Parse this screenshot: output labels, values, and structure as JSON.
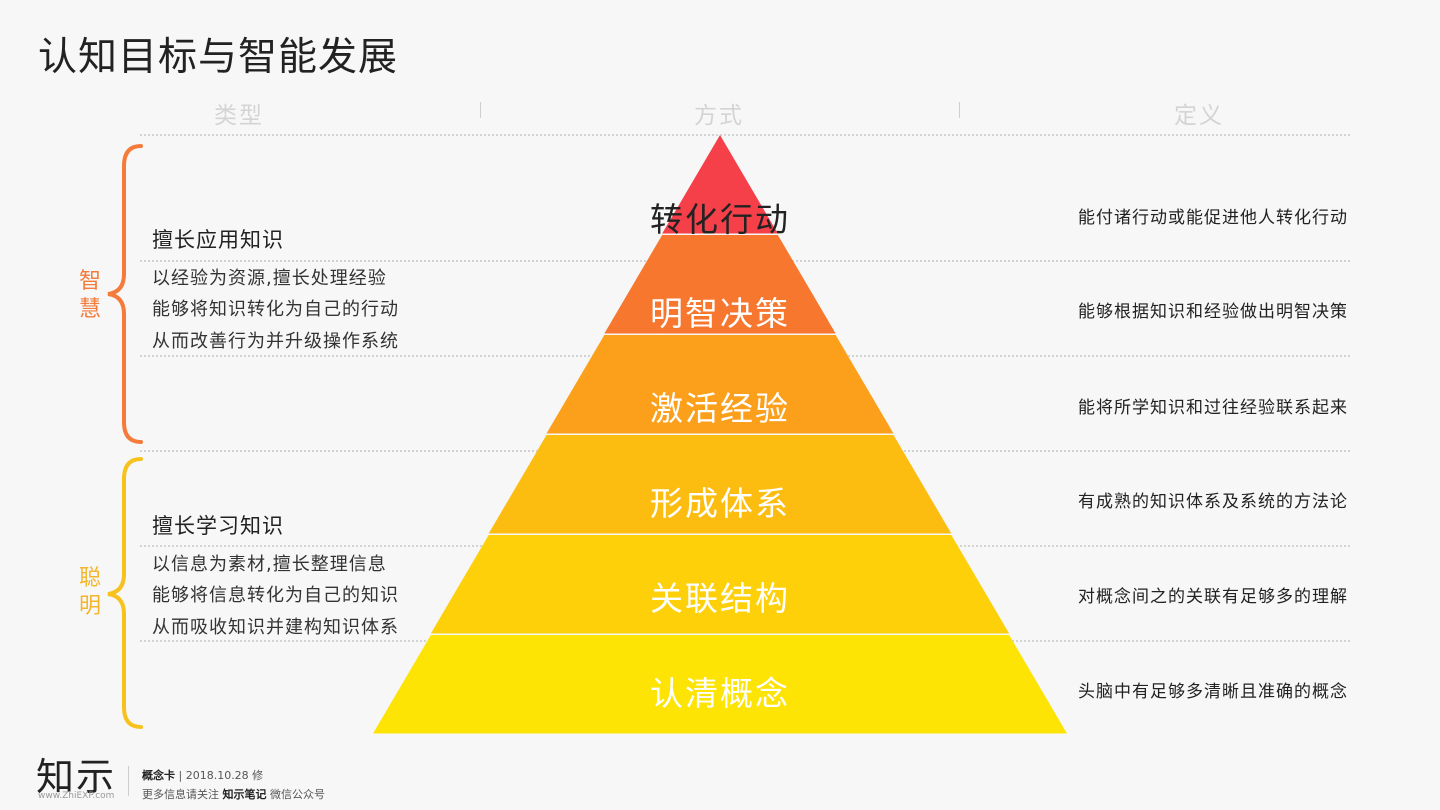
{
  "title": "认知目标与智能发展",
  "columns": [
    "类型",
    "方式",
    "定义"
  ],
  "colors": {
    "wisdom_brace": "#f47b3a",
    "smart_brace": "#f8c21e",
    "wisdom_label": "#f47b3a",
    "smart_label": "#f5b52a"
  },
  "groups": [
    {
      "label": "智慧",
      "heading": "擅长应用知识",
      "lines": [
        "以经验为资源,擅长处理经验",
        "能够将知识转化为自己的行动",
        "从而改善行为并升级操作系统"
      ]
    },
    {
      "label": "聪明",
      "heading": "擅长学习知识",
      "lines": [
        "以信息为素材,擅长整理信息",
        "能够将信息转化为自己的知识",
        "从而吸收知识并建构知识体系"
      ]
    }
  ],
  "pyramid": [
    {
      "label": "转化行动",
      "definition": "能付诸行动或能促进他人转化行动",
      "color": "#f5404a"
    },
    {
      "label": "明智决策",
      "definition": "能够根据知识和经验做出明智决策",
      "color": "#f7772e"
    },
    {
      "label": "激活经验",
      "definition": "能将所学知识和过往经验联系起来",
      "color": "#fca01c"
    },
    {
      "label": "形成体系",
      "definition": "有成熟的知识体系及系统的方法论",
      "color": "#fcbc10"
    },
    {
      "label": "关联结构",
      "definition": "对概念间之的关联有足够多的理解",
      "color": "#fdd00a"
    },
    {
      "label": "认清概念",
      "definition": "头脑中有足够多清晰且准确的概念",
      "color": "#fde404"
    }
  ],
  "footer": {
    "logo": "知示",
    "url": "www.ZhiEXP.com",
    "card": "概念卡",
    "date": "| 2018.10.28 修",
    "follow_prefix": "更多信息请关注",
    "follow_name": "知示笔记",
    "follow_suffix": "微信公众号"
  }
}
